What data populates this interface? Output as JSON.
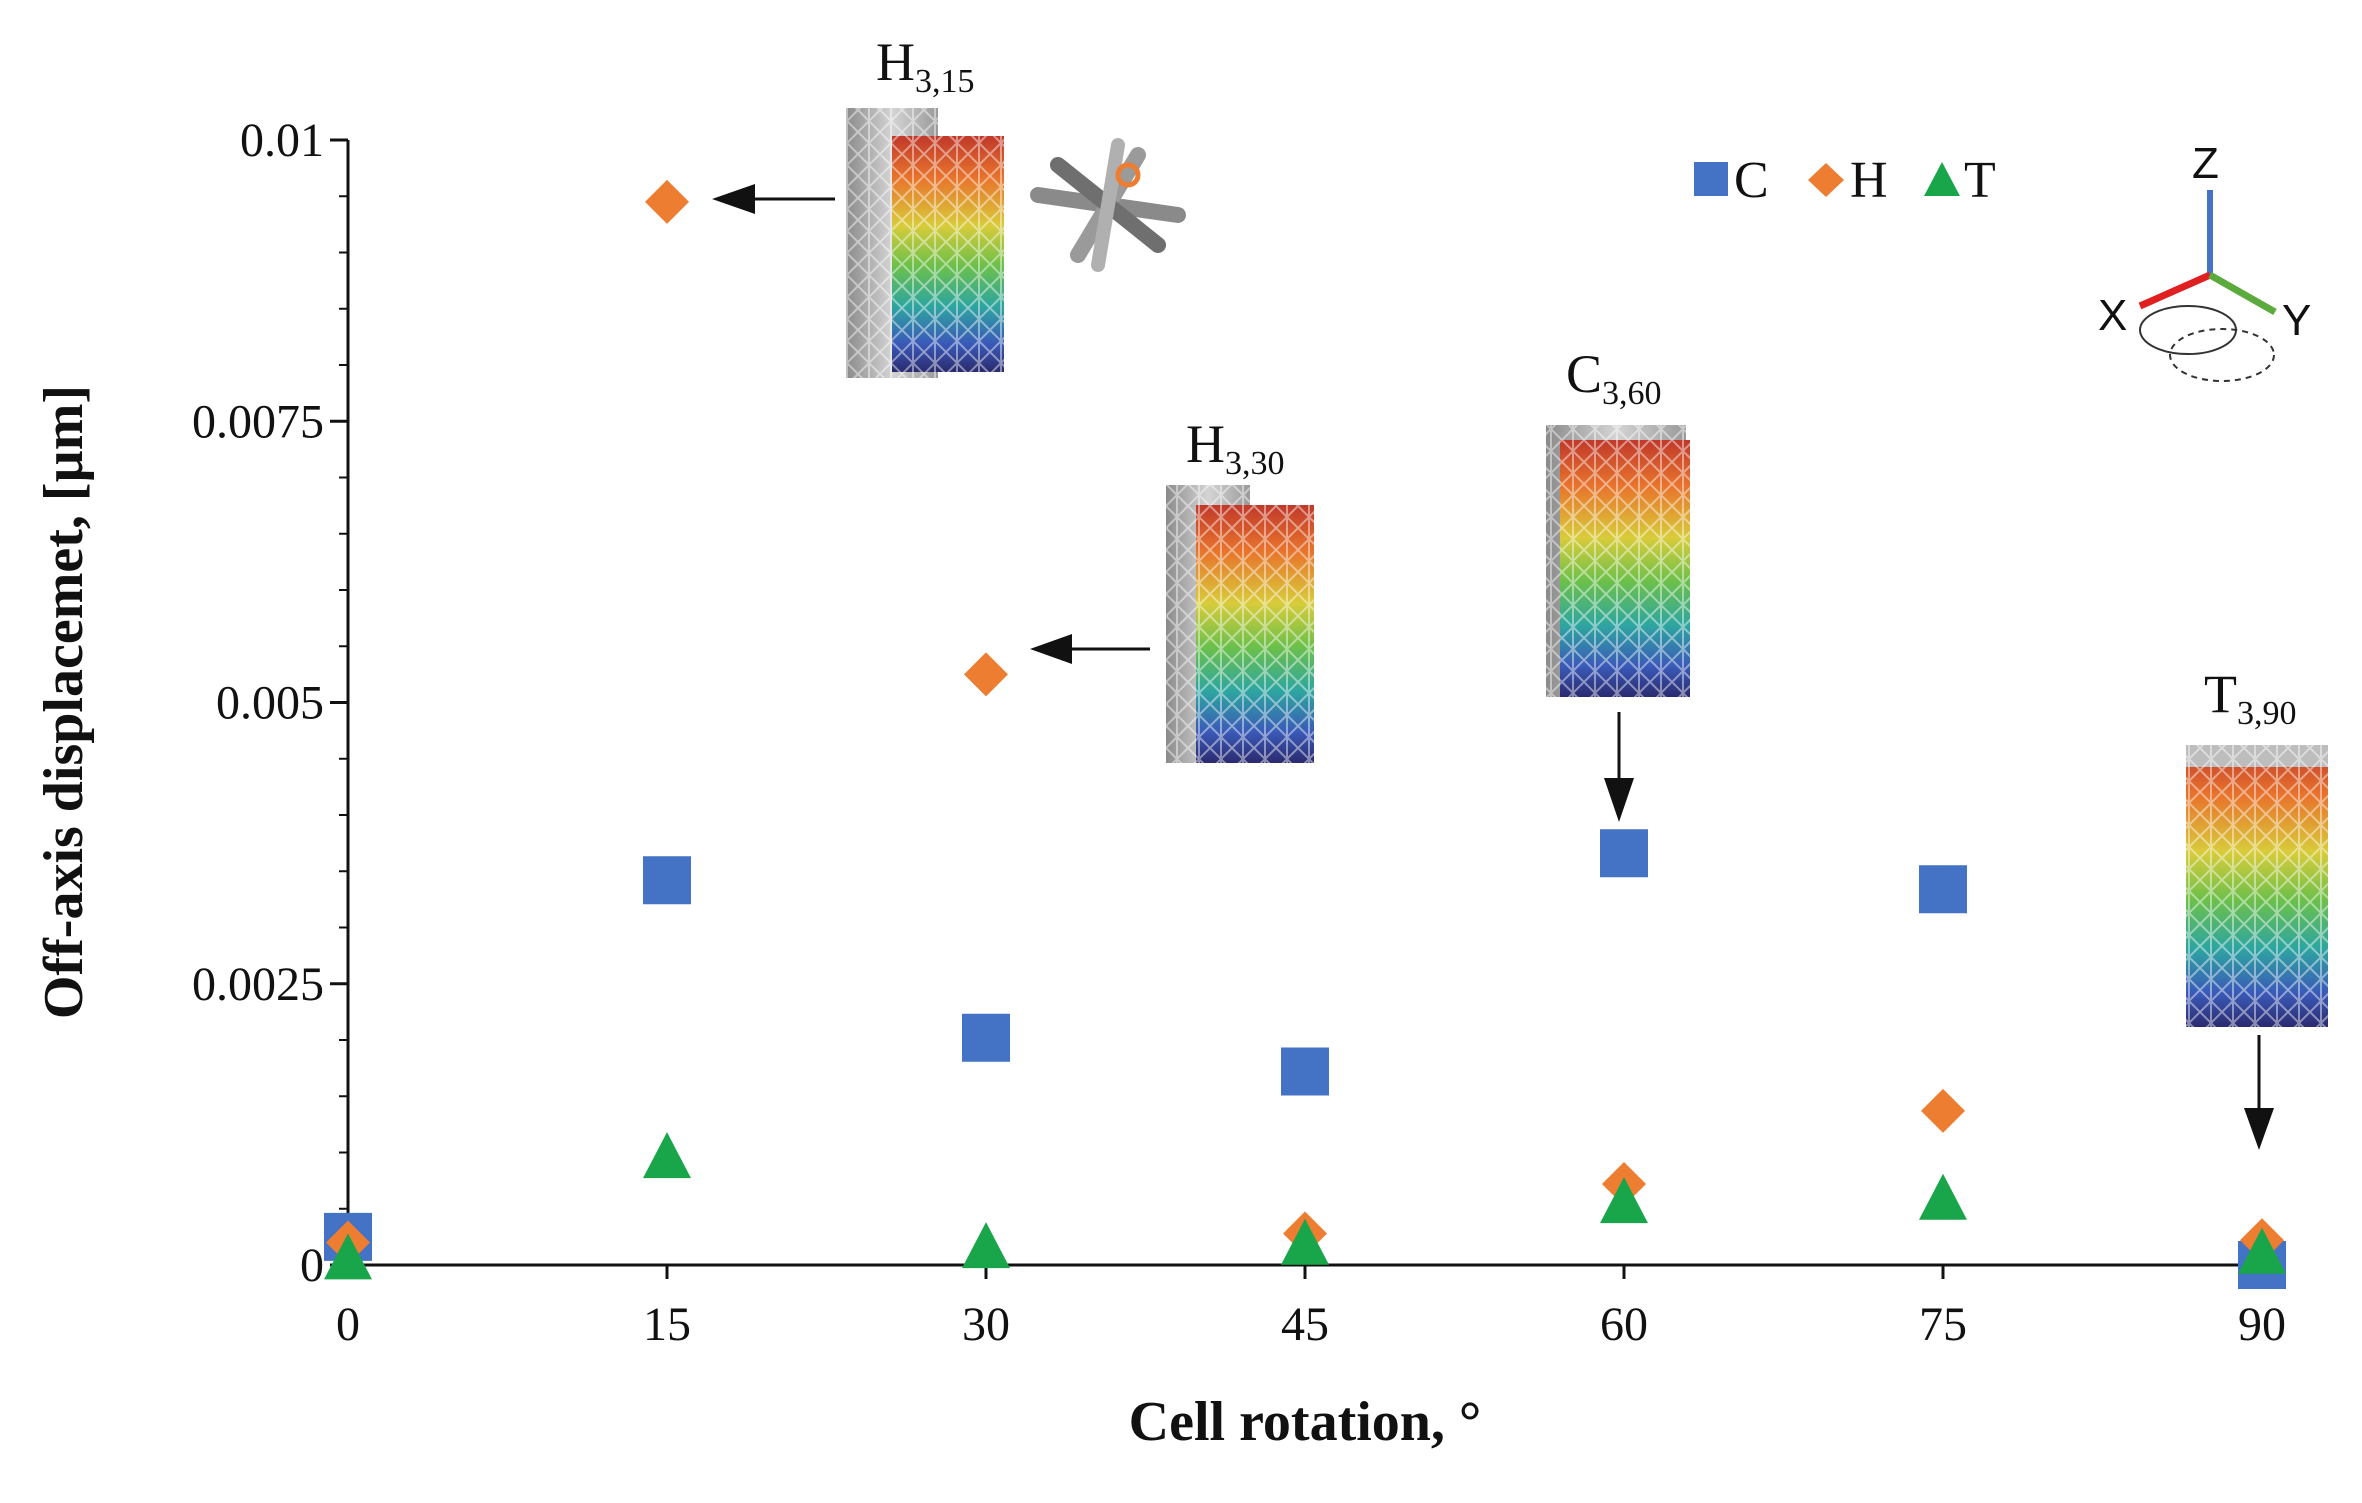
{
  "chart_data": {
    "type": "scatter",
    "title": "",
    "xlabel": "Cell rotation, °",
    "ylabel": "Off-axis displacemet, [µm]",
    "xlim": [
      0,
      90
    ],
    "ylim": [
      0,
      0.01
    ],
    "x": [
      0,
      15,
      30,
      45,
      60,
      75,
      90
    ],
    "x_ticks": [
      "0",
      "15",
      "30",
      "45",
      "60",
      "75",
      "90"
    ],
    "y_ticks": [
      "0",
      "0.0025",
      "0.005",
      "0.0075",
      "0.01"
    ],
    "y_tick_values": [
      0,
      0.0025,
      0.005,
      0.0075,
      0.01
    ],
    "legend_position": "top-right",
    "series": [
      {
        "name": "C",
        "marker": "square",
        "color": "#4472c4",
        "values": [
          0.00025,
          0.00342,
          0.00202,
          0.00172,
          0.00366,
          0.00334,
          0.0
        ]
      },
      {
        "name": "H",
        "marker": "diamond",
        "color": "#ed7d31",
        "values": [
          0.0002,
          0.00945,
          0.00525,
          0.00028,
          0.00072,
          0.00137,
          0.00022
        ]
      },
      {
        "name": "T",
        "marker": "triangle",
        "color": "#19a64a",
        "values": [
          5e-05,
          0.00095,
          0.00015,
          0.00018,
          0.00055,
          0.00058,
          0.0001
        ]
      }
    ],
    "annotations": [
      {
        "name": "H",
        "subscript": "3,15",
        "x": 15,
        "y": 0.00945,
        "arrow": "left"
      },
      {
        "name": "H",
        "subscript": "3,30",
        "x": 30,
        "y": 0.00525,
        "arrow": "left"
      },
      {
        "name": "C",
        "subscript": "3,60",
        "x": 60,
        "y": 0.00366,
        "arrow": "down"
      },
      {
        "name": "T",
        "subscript": "3,90",
        "x": 90,
        "y": 0.0001,
        "arrow": "down"
      }
    ],
    "axes_triad": {
      "labels": [
        "Z",
        "X",
        "Y"
      ],
      "colors": [
        "#4472c4",
        "#e02020",
        "#5aaa3c"
      ]
    }
  }
}
